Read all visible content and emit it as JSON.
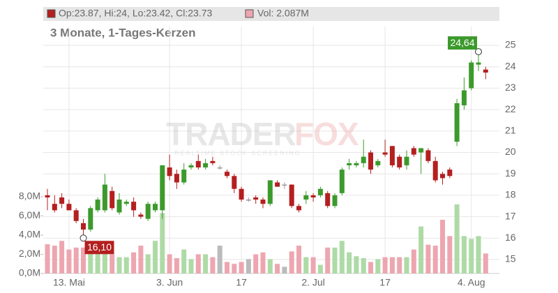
{
  "chart_data": {
    "type": "candlestick",
    "header": {
      "ohlc": "Op:23.87, Hi:24, Lo:23.42, Cl:23.73",
      "volume": "Vol: 2.087M"
    },
    "subtitle": "3 Monate, 1-Tages-Kerzen",
    "watermark": {
      "brand_a": "TRADER",
      "brand_b": "FOX",
      "tagline": "REALTIME STOCK SCREENING"
    },
    "categories": [
      null,
      null,
      null,
      "13. Mai",
      null,
      null,
      null,
      null,
      null,
      null,
      null,
      null,
      null,
      null,
      null,
      null,
      null,
      "3. Jun",
      null,
      null,
      null,
      null,
      null,
      null,
      null,
      null,
      null,
      "17",
      null,
      null,
      null,
      null,
      null,
      null,
      null,
      null,
      null,
      "2. Jul",
      null,
      null,
      null,
      null,
      null,
      null,
      null,
      null,
      null,
      "17",
      null,
      null,
      null,
      null,
      null,
      null,
      null,
      null,
      null,
      null,
      null,
      "4. Aug",
      null,
      null
    ],
    "open": [
      18.0,
      17.6,
      17.9,
      17.6,
      17.3,
      16.7,
      16.4,
      17.3,
      17.3,
      18.2,
      17.2,
      17.6,
      17.7,
      17.1,
      16.9,
      17.3,
      17.3,
      19.3,
      19.0,
      18.6,
      19.3,
      19.6,
      19.3,
      19.6,
      19.3,
      19.1,
      18.9,
      18.3,
      17.8,
      17.9,
      17.8,
      17.6,
      18.6,
      18.5,
      18.5,
      17.5,
      17.8,
      18.0,
      18.0,
      18.1,
      17.5,
      18.1,
      19.4,
      19.4,
      19.5,
      20.0,
      19.4,
      20.0,
      20.3,
      19.8,
      19.4,
      20.2,
      20.0,
      20.1,
      19.6,
      19.0,
      19.2,
      20.5,
      22.2,
      23.0,
      24.1,
      23.87
    ],
    "high": [
      18.3,
      18.0,
      18.1,
      17.8,
      17.4,
      16.9,
      17.5,
      17.9,
      19.0,
      18.4,
      18.1,
      17.8,
      17.9,
      17.2,
      17.7,
      17.7,
      19.4,
      19.9,
      19.2,
      19.5,
      19.5,
      19.9,
      19.7,
      19.8,
      19.4,
      19.2,
      19.0,
      18.4,
      17.9,
      18.0,
      17.9,
      18.7,
      18.7,
      18.6,
      18.5,
      17.6,
      18.2,
      18.1,
      18.4,
      18.2,
      18.1,
      19.3,
      19.7,
      19.6,
      20.6,
      20.1,
      19.7,
      20.6,
      20.3,
      19.9,
      20.1,
      20.3,
      20.2,
      20.2,
      19.8,
      19.1,
      19.3,
      22.5,
      23.5,
      24.3,
      24.64,
      24.0
    ],
    "low": [
      17.3,
      17.2,
      17.4,
      17.3,
      16.7,
      16.1,
      16.3,
      17.2,
      17.2,
      17.3,
      17.1,
      17.5,
      17.0,
      16.9,
      16.8,
      17.2,
      16.9,
      18.7,
      18.3,
      18.5,
      19.2,
      19.2,
      19.2,
      19.4,
      19.2,
      18.8,
      18.1,
      17.7,
      17.7,
      17.6,
      17.4,
      17.5,
      18.4,
      18.3,
      17.4,
      17.2,
      17.6,
      17.7,
      17.9,
      17.4,
      17.4,
      18.0,
      19.2,
      19.3,
      19.3,
      19.0,
      19.3,
      19.8,
      19.3,
      19.2,
      19.2,
      19.8,
      19.0,
      19.5,
      18.6,
      18.5,
      18.8,
      20.3,
      22.0,
      22.9,
      23.8,
      23.42
    ],
    "close": [
      17.9,
      17.3,
      17.6,
      17.3,
      16.8,
      16.4,
      17.4,
      17.8,
      18.5,
      17.4,
      17.8,
      17.7,
      17.3,
      17.0,
      17.6,
      17.6,
      19.4,
      18.9,
      18.6,
      19.2,
      19.4,
      19.3,
      19.5,
      19.5,
      19.3,
      18.9,
      18.3,
      17.8,
      17.8,
      17.8,
      17.6,
      18.7,
      18.4,
      18.5,
      17.5,
      17.3,
      18.0,
      17.9,
      18.3,
      17.5,
      18.0,
      19.2,
      19.5,
      19.5,
      19.8,
      19.2,
      19.6,
      19.9,
      19.4,
      19.3,
      19.8,
      19.9,
      20.2,
      19.6,
      18.7,
      18.8,
      18.9,
      22.3,
      22.9,
      24.2,
      24.2,
      23.73
    ],
    "volume": [
      3.05,
      2.9,
      3.4,
      2.5,
      2.7,
      2.7,
      3.0,
      2.5,
      3.0,
      2.0,
      1.7,
      1.7,
      2.2,
      2.9,
      2.0,
      3.4,
      6.3,
      2.0,
      1.6,
      2.5,
      1.5,
      2.0,
      2.0,
      1.7,
      2.9,
      1.2,
      1.0,
      1.2,
      1.5,
      2.0,
      2.2,
      1.5,
      1.0,
      0.7,
      2.3,
      2.9,
      1.7,
      1.7,
      0.9,
      2.7,
      2.7,
      3.4,
      2.2,
      1.8,
      1.6,
      1.2,
      1.5,
      1.7,
      1.7,
      1.7,
      1.7,
      2.5,
      4.9,
      3.0,
      2.9,
      5.6,
      3.9,
      7.2,
      3.9,
      3.6,
      3.9,
      2.087
    ],
    "colors": {
      "up": "#3c9a2c",
      "down": "#b41f1f",
      "flat": "#999999",
      "up_volume": "#aedaa6",
      "down_volume": "#eda6b0",
      "flat_volume": "#bbbbbb"
    },
    "annotations": [
      {
        "value": 24.64,
        "label": "24,64",
        "kind": "high"
      },
      {
        "value": 16.1,
        "label": "16,10",
        "kind": "low"
      }
    ],
    "ylim": [
      14.35,
      25.88
    ],
    "yticks": [
      15,
      16,
      17,
      18,
      19,
      20,
      21,
      22,
      23,
      24,
      25
    ],
    "y2lim": [
      0,
      25.75
    ],
    "y2ticks": [
      {
        "value": 0,
        "label": "0,0M"
      },
      {
        "value": 2,
        "label": "2,0M"
      },
      {
        "value": 4,
        "label": "4,0M"
      },
      {
        "value": 6,
        "label": "6,0M"
      },
      {
        "value": 8,
        "label": "8,0M"
      }
    ],
    "grid": true
  }
}
